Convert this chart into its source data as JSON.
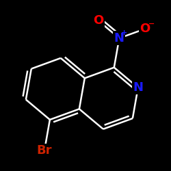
{
  "background_color": "#000000",
  "bond_color": "#ffffff",
  "bond_width": 1.8,
  "atom_colors": {
    "N_nitro": "#1a1aff",
    "N_ring": "#1a1aff",
    "O": "#ff0000",
    "Br": "#cc2200"
  },
  "font_size_atom": 13,
  "font_size_charge": 8,
  "figsize": [
    2.5,
    2.5
  ],
  "dpi": 100
}
